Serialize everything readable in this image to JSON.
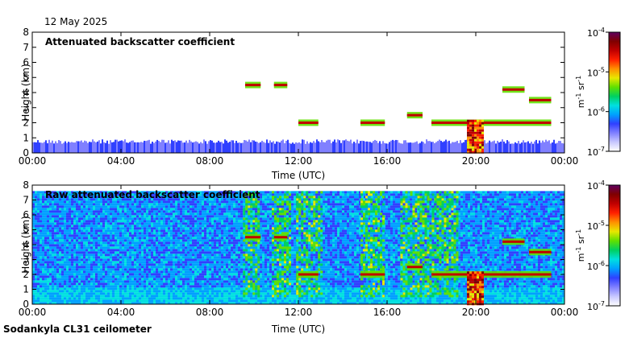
{
  "date_label": "12 May 2025",
  "footer": "Sodankyla CL31 ceilometer",
  "colorbar": {
    "unit_text": "m",
    "unit_exp1": "-1",
    "unit_mid": " sr",
    "unit_exp2": "-1",
    "tick_labels": [
      {
        "base": "10",
        "exp": "-4"
      },
      {
        "base": "10",
        "exp": "-5"
      },
      {
        "base": "10",
        "exp": "-6"
      },
      {
        "base": "10",
        "exp": "-7"
      }
    ],
    "colors": [
      "#5000a0",
      "#8000c0",
      "#3040ff",
      "#00a0ff",
      "#00e0e0",
      "#00d060",
      "#60e000",
      "#e8e800",
      "#ff9000",
      "#ff2000",
      "#c00000",
      "#800000",
      "#ff60ff",
      "#ffb0ff"
    ]
  },
  "chart_data": [
    {
      "type": "heatmap",
      "title": "Attenuated backscatter coefficient",
      "xlabel": "Time (UTC)",
      "ylabel": "Height (km)",
      "x_ticks": [
        "00:00",
        "04:00",
        "08:00",
        "12:00",
        "16:00",
        "20:00",
        "00:00"
      ],
      "y_ticks": [
        "0",
        "1",
        "2",
        "3",
        "4",
        "5",
        "6",
        "7",
        "8"
      ],
      "xlim_hours": [
        0,
        24
      ],
      "ylim_km": [
        0,
        8
      ],
      "colorscale_log10": [
        -7,
        -4
      ],
      "features": [
        {
          "kind": "surface_layer",
          "t0": 0,
          "t1": 24,
          "h0": 0,
          "h1": 0.9
        },
        {
          "kind": "layer",
          "t0": 9.6,
          "t1": 10.3,
          "h": 4.5
        },
        {
          "kind": "layer",
          "t0": 10.9,
          "t1": 11.5,
          "h": 4.5
        },
        {
          "kind": "layer",
          "t0": 12.0,
          "t1": 12.9,
          "h": 2.0
        },
        {
          "kind": "layer",
          "t0": 14.8,
          "t1": 15.9,
          "h": 2.0
        },
        {
          "kind": "layer",
          "t0": 16.9,
          "t1": 17.6,
          "h": 2.5
        },
        {
          "kind": "layer",
          "t0": 18.0,
          "t1": 23.4,
          "h": 2.0
        },
        {
          "kind": "layer",
          "t0": 21.2,
          "t1": 22.2,
          "h": 4.2
        },
        {
          "kind": "layer",
          "t0": 22.4,
          "t1": 23.4,
          "h": 3.5
        },
        {
          "kind": "precip",
          "t0": 19.6,
          "t1": 20.3,
          "h0": 0,
          "h1": 2.2
        }
      ]
    },
    {
      "type": "heatmap",
      "title": "Raw attenuated backscatter coefficient",
      "xlabel": "Time (UTC)",
      "ylabel": "Height (km)",
      "x_ticks": [
        "00:00",
        "04:00",
        "08:00",
        "12:00",
        "16:00",
        "20:00",
        "00:00"
      ],
      "y_ticks": [
        "0",
        "1",
        "2",
        "3",
        "4",
        "5",
        "6",
        "7",
        "8"
      ],
      "xlim_hours": [
        0,
        24
      ],
      "ylim_km": [
        0,
        8
      ],
      "colorscale_log10": [
        -7,
        -4
      ],
      "features": [
        {
          "kind": "noise_background",
          "t0": 0,
          "t1": 24,
          "h0": 0,
          "h1": 7.6
        },
        {
          "kind": "noisy_column",
          "t0": 9.5,
          "t1": 10.2,
          "h0": 0.5,
          "h1": 7.6
        },
        {
          "kind": "noisy_column",
          "t0": 10.8,
          "t1": 11.6,
          "h0": 0.5,
          "h1": 7.6
        },
        {
          "kind": "noisy_column",
          "t0": 11.9,
          "t1": 13.0,
          "h0": 0.5,
          "h1": 7.6
        },
        {
          "kind": "noisy_column",
          "t0": 14.8,
          "t1": 15.8,
          "h0": 0.5,
          "h1": 7.6
        },
        {
          "kind": "noisy_column",
          "t0": 16.6,
          "t1": 19.2,
          "h0": 0.5,
          "h1": 7.6
        },
        {
          "kind": "layer",
          "t0": 9.6,
          "t1": 10.3,
          "h": 4.5
        },
        {
          "kind": "layer",
          "t0": 10.9,
          "t1": 11.5,
          "h": 4.5
        },
        {
          "kind": "layer",
          "t0": 12.0,
          "t1": 12.9,
          "h": 2.0
        },
        {
          "kind": "layer",
          "t0": 14.8,
          "t1": 15.9,
          "h": 2.0
        },
        {
          "kind": "layer",
          "t0": 16.9,
          "t1": 17.6,
          "h": 2.5
        },
        {
          "kind": "layer",
          "t0": 18.0,
          "t1": 23.4,
          "h": 2.0
        },
        {
          "kind": "layer",
          "t0": 21.2,
          "t1": 22.2,
          "h": 4.2
        },
        {
          "kind": "layer",
          "t0": 22.4,
          "t1": 23.4,
          "h": 3.5
        },
        {
          "kind": "precip",
          "t0": 19.6,
          "t1": 20.3,
          "h0": 0,
          "h1": 2.2
        }
      ]
    }
  ]
}
